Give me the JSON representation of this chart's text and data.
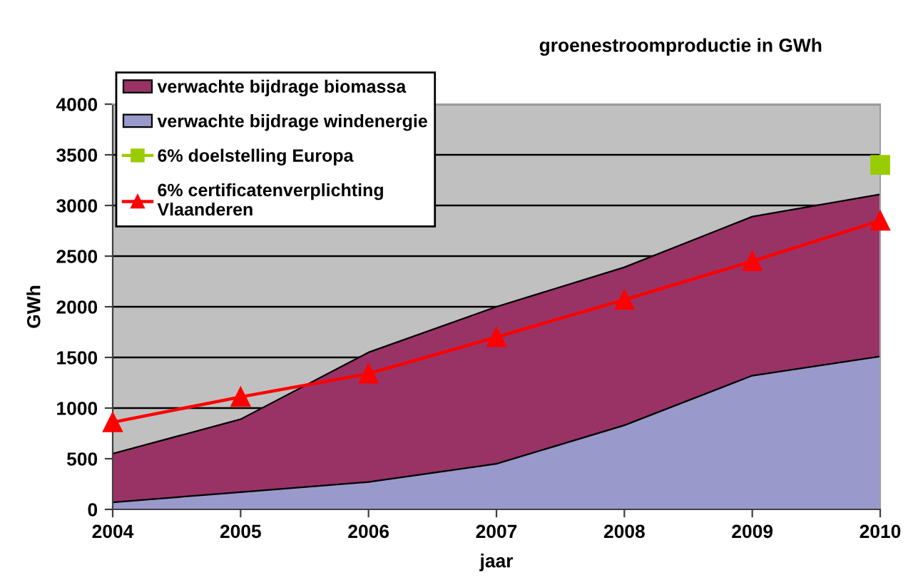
{
  "chart_data": {
    "type": "area",
    "title": "groenestroomproductie in GWh",
    "xlabel": "jaar",
    "ylabel": "GWh",
    "x": [
      2004,
      2005,
      2006,
      2007,
      2008,
      2009,
      2010
    ],
    "stacked": true,
    "series": [
      {
        "name": "verwachte bijdrage windenergie",
        "color": "#9999cc",
        "values": [
          70,
          170,
          270,
          450,
          830,
          1320,
          1510
        ]
      },
      {
        "name": "verwachte bijdrage biomassa",
        "color": "#993366",
        "values": [
          480,
          720,
          1280,
          1550,
          1560,
          1570,
          1600
        ]
      },
      {
        "name": "6% doelstelling Europa",
        "type": "line",
        "color": "#99cc00",
        "marker": "square",
        "values": [
          null,
          null,
          null,
          null,
          null,
          null,
          3400
        ]
      },
      {
        "name": "6% certificatenverplichting Vlaanderen",
        "type": "line",
        "color": "#ff0000",
        "marker": "triangle",
        "values": [
          860,
          1110,
          1340,
          1700,
          2070,
          2450,
          2850
        ]
      }
    ],
    "xlim": [
      2004,
      2010
    ],
    "xticks": [
      2004,
      2005,
      2006,
      2007,
      2008,
      2009,
      2010
    ],
    "ylim": [
      0,
      4000
    ],
    "yticks": [
      0,
      500,
      1000,
      1500,
      2000,
      2500,
      3000,
      3500,
      4000
    ],
    "grid": "y",
    "legend": "top left"
  }
}
